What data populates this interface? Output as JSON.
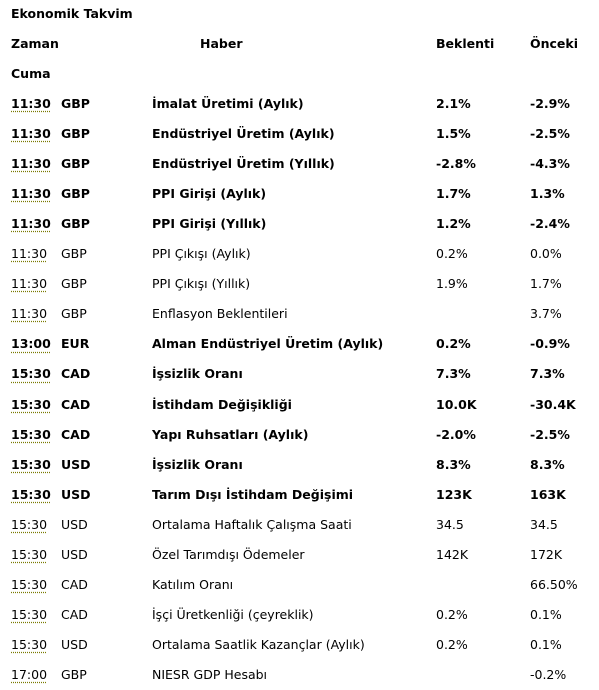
{
  "title": "Ekonomik Takvim",
  "headers": {
    "time": "Zaman",
    "news": "Haber",
    "expected": "Beklenti",
    "previous": "Önceki"
  },
  "day": "Cuma",
  "rows": [
    {
      "time": "11:30",
      "currency": "GBP",
      "news": "İmalat Üretimi (Aylık)",
      "expected": "2.1%",
      "previous": "-2.9%",
      "bold": true
    },
    {
      "time": "11:30",
      "currency": "GBP",
      "news": "Endüstriyel Üretim (Aylık)",
      "expected": "1.5%",
      "previous": "-2.5%",
      "bold": true
    },
    {
      "time": "11:30",
      "currency": "GBP",
      "news": "Endüstriyel Üretim (Yıllık)",
      "expected": "-2.8%",
      "previous": "-4.3%",
      "bold": true
    },
    {
      "time": "11:30",
      "currency": "GBP",
      "news": "PPI Girişi (Aylık)",
      "expected": "1.7%",
      "previous": "1.3%",
      "bold": true
    },
    {
      "time": "11:30",
      "currency": "GBP",
      "news": "PPI Girişi (Yıllık)",
      "expected": "1.2%",
      "previous": "-2.4%",
      "bold": true
    },
    {
      "time": "11:30",
      "currency": "GBP",
      "news": "PPI Çıkışı (Aylık)",
      "expected": "0.2%",
      "previous": "0.0%",
      "bold": false
    },
    {
      "time": "11:30",
      "currency": "GBP",
      "news": "PPI Çıkışı (Yıllık)",
      "expected": "1.9%",
      "previous": "1.7%",
      "bold": false
    },
    {
      "time": "11:30",
      "currency": "GBP",
      "news": "Enflasyon Beklentileri",
      "expected": "",
      "previous": "3.7%",
      "bold": false
    },
    {
      "time": "13:00",
      "currency": "EUR",
      "news": "Alman Endüstriyel Üretim (Aylık)",
      "expected": "0.2%",
      "previous": "-0.9%",
      "bold": true
    },
    {
      "time": "15:30",
      "currency": "CAD",
      "news": "İşsizlik Oranı",
      "expected": "7.3%",
      "previous": "7.3%",
      "bold": true
    },
    {
      "time": "15:30",
      "currency": "CAD",
      "news": "İstihdam Değişikliği",
      "expected": "10.0K",
      "previous": "-30.4K",
      "bold": true
    },
    {
      "time": "15:30",
      "currency": "CAD",
      "news": "Yapı Ruhsatları (Aylık)",
      "expected": "-2.0%",
      "previous": "-2.5%",
      "bold": true
    },
    {
      "time": "15:30",
      "currency": "USD",
      "news": "İşsizlik Oranı",
      "expected": "8.3%",
      "previous": "8.3%",
      "bold": true
    },
    {
      "time": "15:30",
      "currency": "USD",
      "news": "Tarım Dışı İstihdam Değişimi",
      "expected": "123K",
      "previous": "163K",
      "bold": true
    },
    {
      "time": "15:30",
      "currency": "USD",
      "news": "Ortalama Haftalık Çalışma Saati",
      "expected": "34.5",
      "previous": "34.5",
      "bold": false
    },
    {
      "time": "15:30",
      "currency": "USD",
      "news": "Özel Tarımdışı Ödemeler",
      "expected": "142K",
      "previous": "172K",
      "bold": false
    },
    {
      "time": "15:30",
      "currency": "CAD",
      "news": "Katılım Oranı",
      "expected": "",
      "previous": "66.50%",
      "bold": false
    },
    {
      "time": "15:30",
      "currency": "CAD",
      "news": "İşçi Üretkenliği (çeyreklik)",
      "expected": "0.2%",
      "previous": "0.1%",
      "bold": false
    },
    {
      "time": "15:30",
      "currency": "USD",
      "news": "Ortalama Saatlik Kazançlar (Aylık)",
      "expected": "0.2%",
      "previous": "0.1%",
      "bold": false
    },
    {
      "time": "17:00",
      "currency": "GBP",
      "news": "NIESR GDP Hesabı",
      "expected": "",
      "previous": "-0.2%",
      "bold": false
    }
  ]
}
